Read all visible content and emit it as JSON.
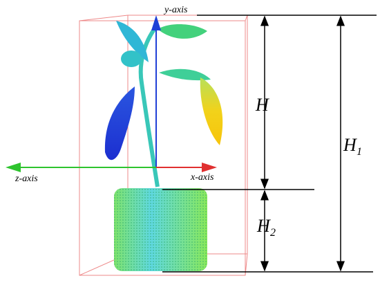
{
  "axes": {
    "y": "y-axis",
    "z": "z-axis",
    "x": "x-axis"
  },
  "dimensions": {
    "H": {
      "letter": "H"
    },
    "H1": {
      "letter": "H",
      "subscript": "1"
    },
    "H2": {
      "letter": "H",
      "subscript": "2"
    }
  }
}
